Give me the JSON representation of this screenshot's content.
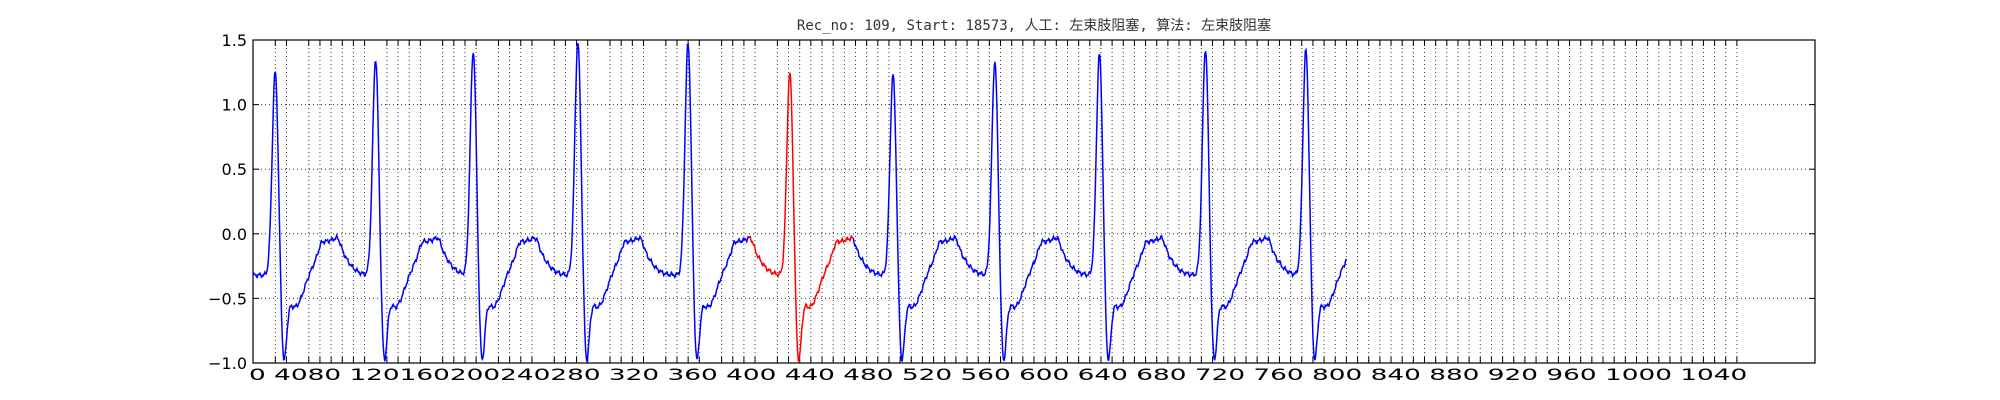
{
  "chart_data": {
    "type": "line",
    "title": "Rec_no: 109, Start: 18573, 人工: 左束肢阻塞, 算法: 左束肢阻塞",
    "xlabel": "",
    "ylabel": "",
    "xlim": [
      0,
      1120
    ],
    "ylim": [
      -1.0,
      1.5
    ],
    "grid": true,
    "grid_style": "dotted",
    "yticks": [
      1.5,
      1.0,
      0.5,
      0.0,
      -0.5,
      -1.0
    ],
    "ytick_labels": [
      "1.5",
      "1.0",
      "0.5",
      "0.0",
      "−0.5",
      "−1.0"
    ],
    "xticks": [
      0,
      16,
      24,
      40,
      48,
      56,
      64,
      72,
      80,
      96,
      104,
      112,
      120,
      136,
      144,
      152,
      160,
      176,
      184,
      192,
      200,
      216,
      224,
      232,
      240,
      256,
      264,
      272,
      280,
      296,
      304,
      312,
      320,
      336,
      344,
      352,
      360,
      376,
      384,
      392,
      400,
      408,
      416,
      424,
      432,
      440,
      448,
      456,
      464,
      472,
      480,
      488,
      496,
      504,
      512,
      520,
      528,
      536,
      544,
      552,
      560,
      568,
      576,
      584,
      592,
      600,
      608,
      616,
      624,
      632,
      640,
      648,
      656,
      664,
      672,
      680,
      688,
      696,
      704,
      712,
      720,
      728,
      736,
      744,
      752,
      760,
      768,
      776,
      784,
      792,
      800,
      808,
      816,
      824,
      832,
      840,
      848,
      856,
      864,
      872,
      880,
      888,
      896,
      904,
      912,
      920,
      928,
      936,
      944,
      952,
      960,
      968,
      976,
      984,
      992,
      1000,
      1008,
      1016,
      1024,
      1032,
      1040,
      1048,
      1056,
      1064
    ],
    "xtick_labels_text": "0  4080  120160200240280  320 360 400 440 480 520 560 600 640 680 720 760 800 840 880 920 960 1000 1040",
    "series": [
      {
        "color": "#0000ff",
        "beat_peaks_x": [
          16,
          88,
          158,
          233,
          312,
          459,
          532,
          607,
          683,
          755
        ],
        "beats": [
          {
            "peak_x": 16,
            "peak_y": 1.27
          },
          {
            "peak_x": 88,
            "peak_y": 1.37
          },
          {
            "peak_x": 158,
            "peak_y": 1.43
          },
          {
            "peak_x": 233,
            "peak_y": 1.5
          },
          {
            "peak_x": 312,
            "peak_y": 1.49
          },
          {
            "peak_x": 459,
            "peak_y": 1.25
          },
          {
            "peak_x": 532,
            "peak_y": 1.35
          },
          {
            "peak_x": 607,
            "peak_y": 1.41
          },
          {
            "peak_x": 683,
            "peak_y": 1.45
          },
          {
            "peak_x": 755,
            "peak_y": 1.44
          }
        ],
        "end_x": 784,
        "end_y": -0.17
      },
      {
        "color": "#ff0000",
        "segment_x": [
          356,
          430
        ],
        "beats": [
          {
            "peak_x": 385,
            "peak_y": 1.26
          }
        ]
      }
    ]
  }
}
